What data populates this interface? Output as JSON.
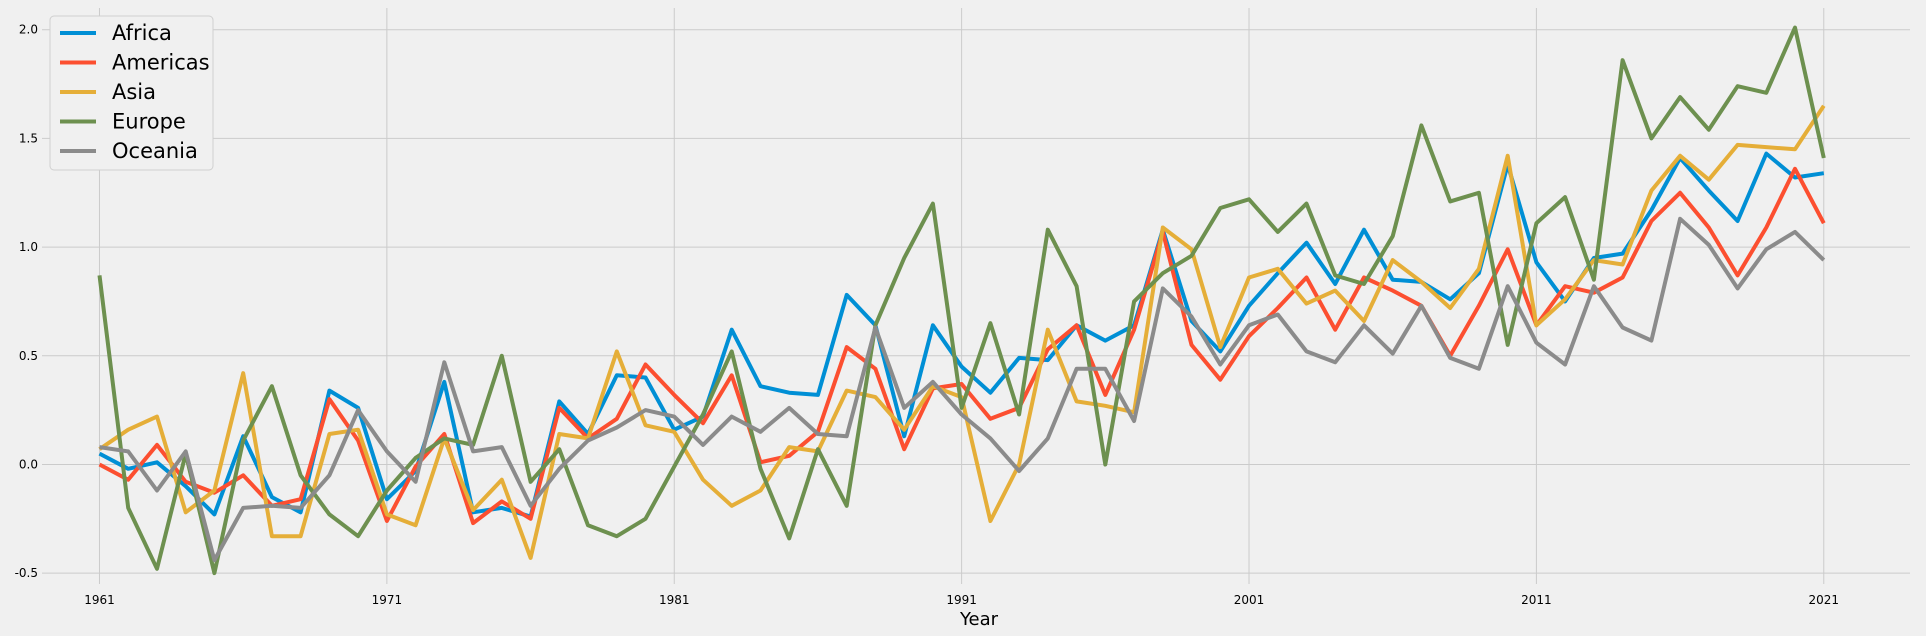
{
  "chart_data": {
    "type": "line",
    "title": "",
    "xlabel": "Year",
    "ylabel": "",
    "xlim": [
      1959,
      2024
    ],
    "ylim": [
      -0.55,
      2.1
    ],
    "x_ticks": [
      1961,
      1971,
      1981,
      1991,
      2001,
      2011,
      2021
    ],
    "y_ticks": [
      -0.5,
      0.0,
      0.5,
      1.0,
      1.5,
      2.0
    ],
    "grid": true,
    "legend": "top-left",
    "x": [
      1961,
      1962,
      1963,
      1964,
      1965,
      1966,
      1967,
      1968,
      1969,
      1970,
      1971,
      1972,
      1973,
      1974,
      1975,
      1976,
      1977,
      1978,
      1979,
      1980,
      1981,
      1982,
      1983,
      1984,
      1985,
      1986,
      1987,
      1988,
      1989,
      1990,
      1991,
      1992,
      1993,
      1994,
      1995,
      1996,
      1997,
      1998,
      1999,
      2000,
      2001,
      2002,
      2003,
      2004,
      2005,
      2006,
      2007,
      2008,
      2009,
      2010,
      2011,
      2012,
      2013,
      2014,
      2015,
      2016,
      2017,
      2018,
      2019,
      2020,
      2021
    ],
    "series": [
      {
        "name": "Africa",
        "color": "#008fd5",
        "values": [
          0.05,
          -0.02,
          0.01,
          -0.1,
          -0.23,
          0.13,
          -0.15,
          -0.22,
          0.34,
          0.26,
          -0.16,
          -0.03,
          0.38,
          -0.22,
          -0.2,
          -0.24,
          0.29,
          0.14,
          0.41,
          0.4,
          0.16,
          0.22,
          0.62,
          0.36,
          0.33,
          0.32,
          0.78,
          0.64,
          0.13,
          0.64,
          0.45,
          0.33,
          0.49,
          0.48,
          0.64,
          0.57,
          0.64,
          1.08,
          0.66,
          0.52,
          0.73,
          0.88,
          1.02,
          0.83,
          1.08,
          0.85,
          0.84,
          0.76,
          0.88,
          1.38,
          0.93,
          0.75,
          0.95,
          0.97,
          1.17,
          1.41,
          1.26,
          1.12,
          1.43,
          1.32,
          1.34
        ]
      },
      {
        "name": "Americas",
        "color": "#fc4f30",
        "values": [
          0.0,
          -0.07,
          0.09,
          -0.08,
          -0.13,
          -0.05,
          -0.19,
          -0.16,
          0.3,
          0.11,
          -0.26,
          -0.01,
          0.14,
          -0.27,
          -0.17,
          -0.25,
          0.26,
          0.12,
          0.21,
          0.46,
          0.32,
          0.19,
          0.41,
          0.01,
          0.04,
          0.15,
          0.54,
          0.44,
          0.07,
          0.35,
          0.37,
          0.21,
          0.26,
          0.53,
          0.64,
          0.32,
          0.62,
          1.07,
          0.55,
          0.39,
          0.59,
          0.72,
          0.86,
          0.62,
          0.86,
          0.8,
          0.73,
          0.5,
          0.73,
          0.99,
          0.64,
          0.82,
          0.79,
          0.86,
          1.12,
          1.25,
          1.09,
          0.87,
          1.09,
          1.36,
          1.11
        ]
      },
      {
        "name": "Asia",
        "color": "#e5ae38",
        "values": [
          0.07,
          0.16,
          0.22,
          -0.22,
          -0.12,
          0.42,
          -0.33,
          -0.33,
          0.14,
          0.16,
          -0.23,
          -0.28,
          0.12,
          -0.21,
          -0.07,
          -0.43,
          0.14,
          0.12,
          0.52,
          0.18,
          0.15,
          -0.07,
          -0.19,
          -0.12,
          0.08,
          0.06,
          0.34,
          0.31,
          0.16,
          0.36,
          0.31,
          -0.26,
          0.0,
          0.62,
          0.29,
          0.27,
          0.24,
          1.09,
          0.99,
          0.54,
          0.86,
          0.9,
          0.74,
          0.8,
          0.66,
          0.94,
          0.84,
          0.72,
          0.9,
          1.42,
          0.64,
          0.76,
          0.94,
          0.92,
          1.26,
          1.42,
          1.31,
          1.47,
          1.46,
          1.45,
          1.65
        ]
      },
      {
        "name": "Europe",
        "color": "#6d904f",
        "values": [
          0.87,
          -0.2,
          -0.48,
          0.05,
          -0.5,
          0.11,
          0.36,
          -0.05,
          -0.23,
          -0.33,
          -0.12,
          0.03,
          0.12,
          0.09,
          0.5,
          -0.08,
          0.07,
          -0.28,
          -0.33,
          -0.25,
          -0.01,
          0.23,
          0.52,
          -0.02,
          -0.34,
          0.07,
          -0.19,
          0.64,
          0.95,
          1.2,
          0.26,
          0.65,
          0.23,
          1.08,
          0.82,
          0.0,
          0.75,
          0.88,
          0.96,
          1.18,
          1.22,
          1.07,
          1.2,
          0.87,
          0.83,
          1.05,
          1.56,
          1.21,
          1.25,
          0.55,
          1.11,
          1.23,
          0.85,
          1.86,
          1.5,
          1.69,
          1.54,
          1.74,
          1.71,
          2.01,
          1.41
        ]
      },
      {
        "name": "Oceania",
        "color": "#8b8b8b",
        "values": [
          0.08,
          0.06,
          -0.12,
          0.06,
          -0.44,
          -0.2,
          -0.19,
          -0.2,
          -0.05,
          0.25,
          0.06,
          -0.08,
          0.47,
          0.06,
          0.08,
          -0.19,
          -0.02,
          0.11,
          0.17,
          0.25,
          0.22,
          0.09,
          0.22,
          0.15,
          0.26,
          0.14,
          0.13,
          0.63,
          0.26,
          0.38,
          0.23,
          0.12,
          -0.03,
          0.12,
          0.44,
          0.44,
          0.2,
          0.81,
          0.68,
          0.46,
          0.64,
          0.69,
          0.52,
          0.47,
          0.64,
          0.51,
          0.73,
          0.49,
          0.44,
          0.82,
          0.56,
          0.46,
          0.82,
          0.63,
          0.57,
          1.13,
          1.01,
          0.81,
          0.99,
          1.07,
          0.94
        ]
      }
    ]
  }
}
